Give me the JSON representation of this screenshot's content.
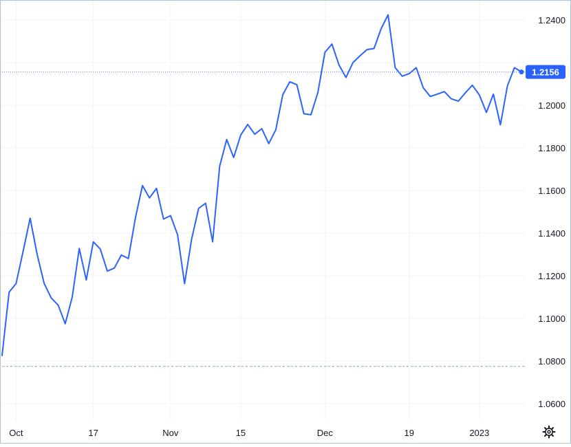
{
  "chart_data": {
    "type": "line",
    "title": "",
    "xlabel": "",
    "ylabel": "",
    "ylim": [
      1.052,
      1.246
    ],
    "grid": true,
    "legend": "none",
    "x_ticks": [
      {
        "label": "Oct",
        "index": 2
      },
      {
        "label": "17",
        "index": 13
      },
      {
        "label": "Nov",
        "index": 24
      },
      {
        "label": "15",
        "index": 34
      },
      {
        "label": "Dec",
        "index": 46
      },
      {
        "label": "19",
        "index": 58
      },
      {
        "label": "2023",
        "index": 68
      }
    ],
    "y_ticks": [
      {
        "label": "1.2400",
        "value": 1.24
      },
      {
        "label": "1.2200",
        "value": 1.22
      },
      {
        "label": "1.2000",
        "value": 1.2
      },
      {
        "label": "1.1800",
        "value": 1.18
      },
      {
        "label": "1.1600",
        "value": 1.16
      },
      {
        "label": "1.1400",
        "value": 1.14
      },
      {
        "label": "1.1200",
        "value": 1.12
      },
      {
        "label": "1.1000",
        "value": 1.1
      },
      {
        "label": "1.0800",
        "value": 1.08
      },
      {
        "label": "1.0600",
        "value": 1.06
      }
    ],
    "series": [
      {
        "color": "#2962ff",
        "values": [
          1.0826,
          1.1123,
          1.1164,
          1.1315,
          1.147,
          1.13,
          1.1164,
          1.1096,
          1.1062,
          1.0975,
          1.11,
          1.1328,
          1.118,
          1.1359,
          1.1325,
          1.1222,
          1.1236,
          1.1297,
          1.1281,
          1.1473,
          1.1623,
          1.1565,
          1.161,
          1.1466,
          1.1482,
          1.1393,
          1.1163,
          1.1371,
          1.1516,
          1.154,
          1.1359,
          1.1714,
          1.1839,
          1.1755,
          1.186,
          1.191,
          1.1864,
          1.189,
          1.182,
          1.1885,
          1.205,
          1.211,
          1.2096,
          1.196,
          1.1955,
          1.206,
          1.2248,
          1.2287,
          1.2189,
          1.213,
          1.22,
          1.2232,
          1.2261,
          1.2266,
          1.2358,
          1.2424,
          1.2176,
          1.2136,
          1.2148,
          1.2176,
          1.2082,
          1.2041,
          1.2052,
          1.2064,
          1.203,
          1.2019,
          1.2058,
          1.2094,
          1.2048,
          1.1966,
          1.2052,
          1.1908,
          1.2091,
          1.2176,
          1.2156
        ]
      }
    ],
    "last_price": {
      "label": "1.2156",
      "value": 1.2156
    },
    "baseline": {
      "value": 1.0775,
      "colors": [
        "#ef5350",
        "#26a69a"
      ]
    }
  },
  "colors": {
    "line": "#2962ff",
    "label_bg": "#2962ff",
    "grid": "#f2f3f5",
    "axis_text": "#131722",
    "border": "#a9c4d6",
    "price_line": "#5b7bff"
  },
  "icons": {
    "settings": "gear-icon"
  }
}
